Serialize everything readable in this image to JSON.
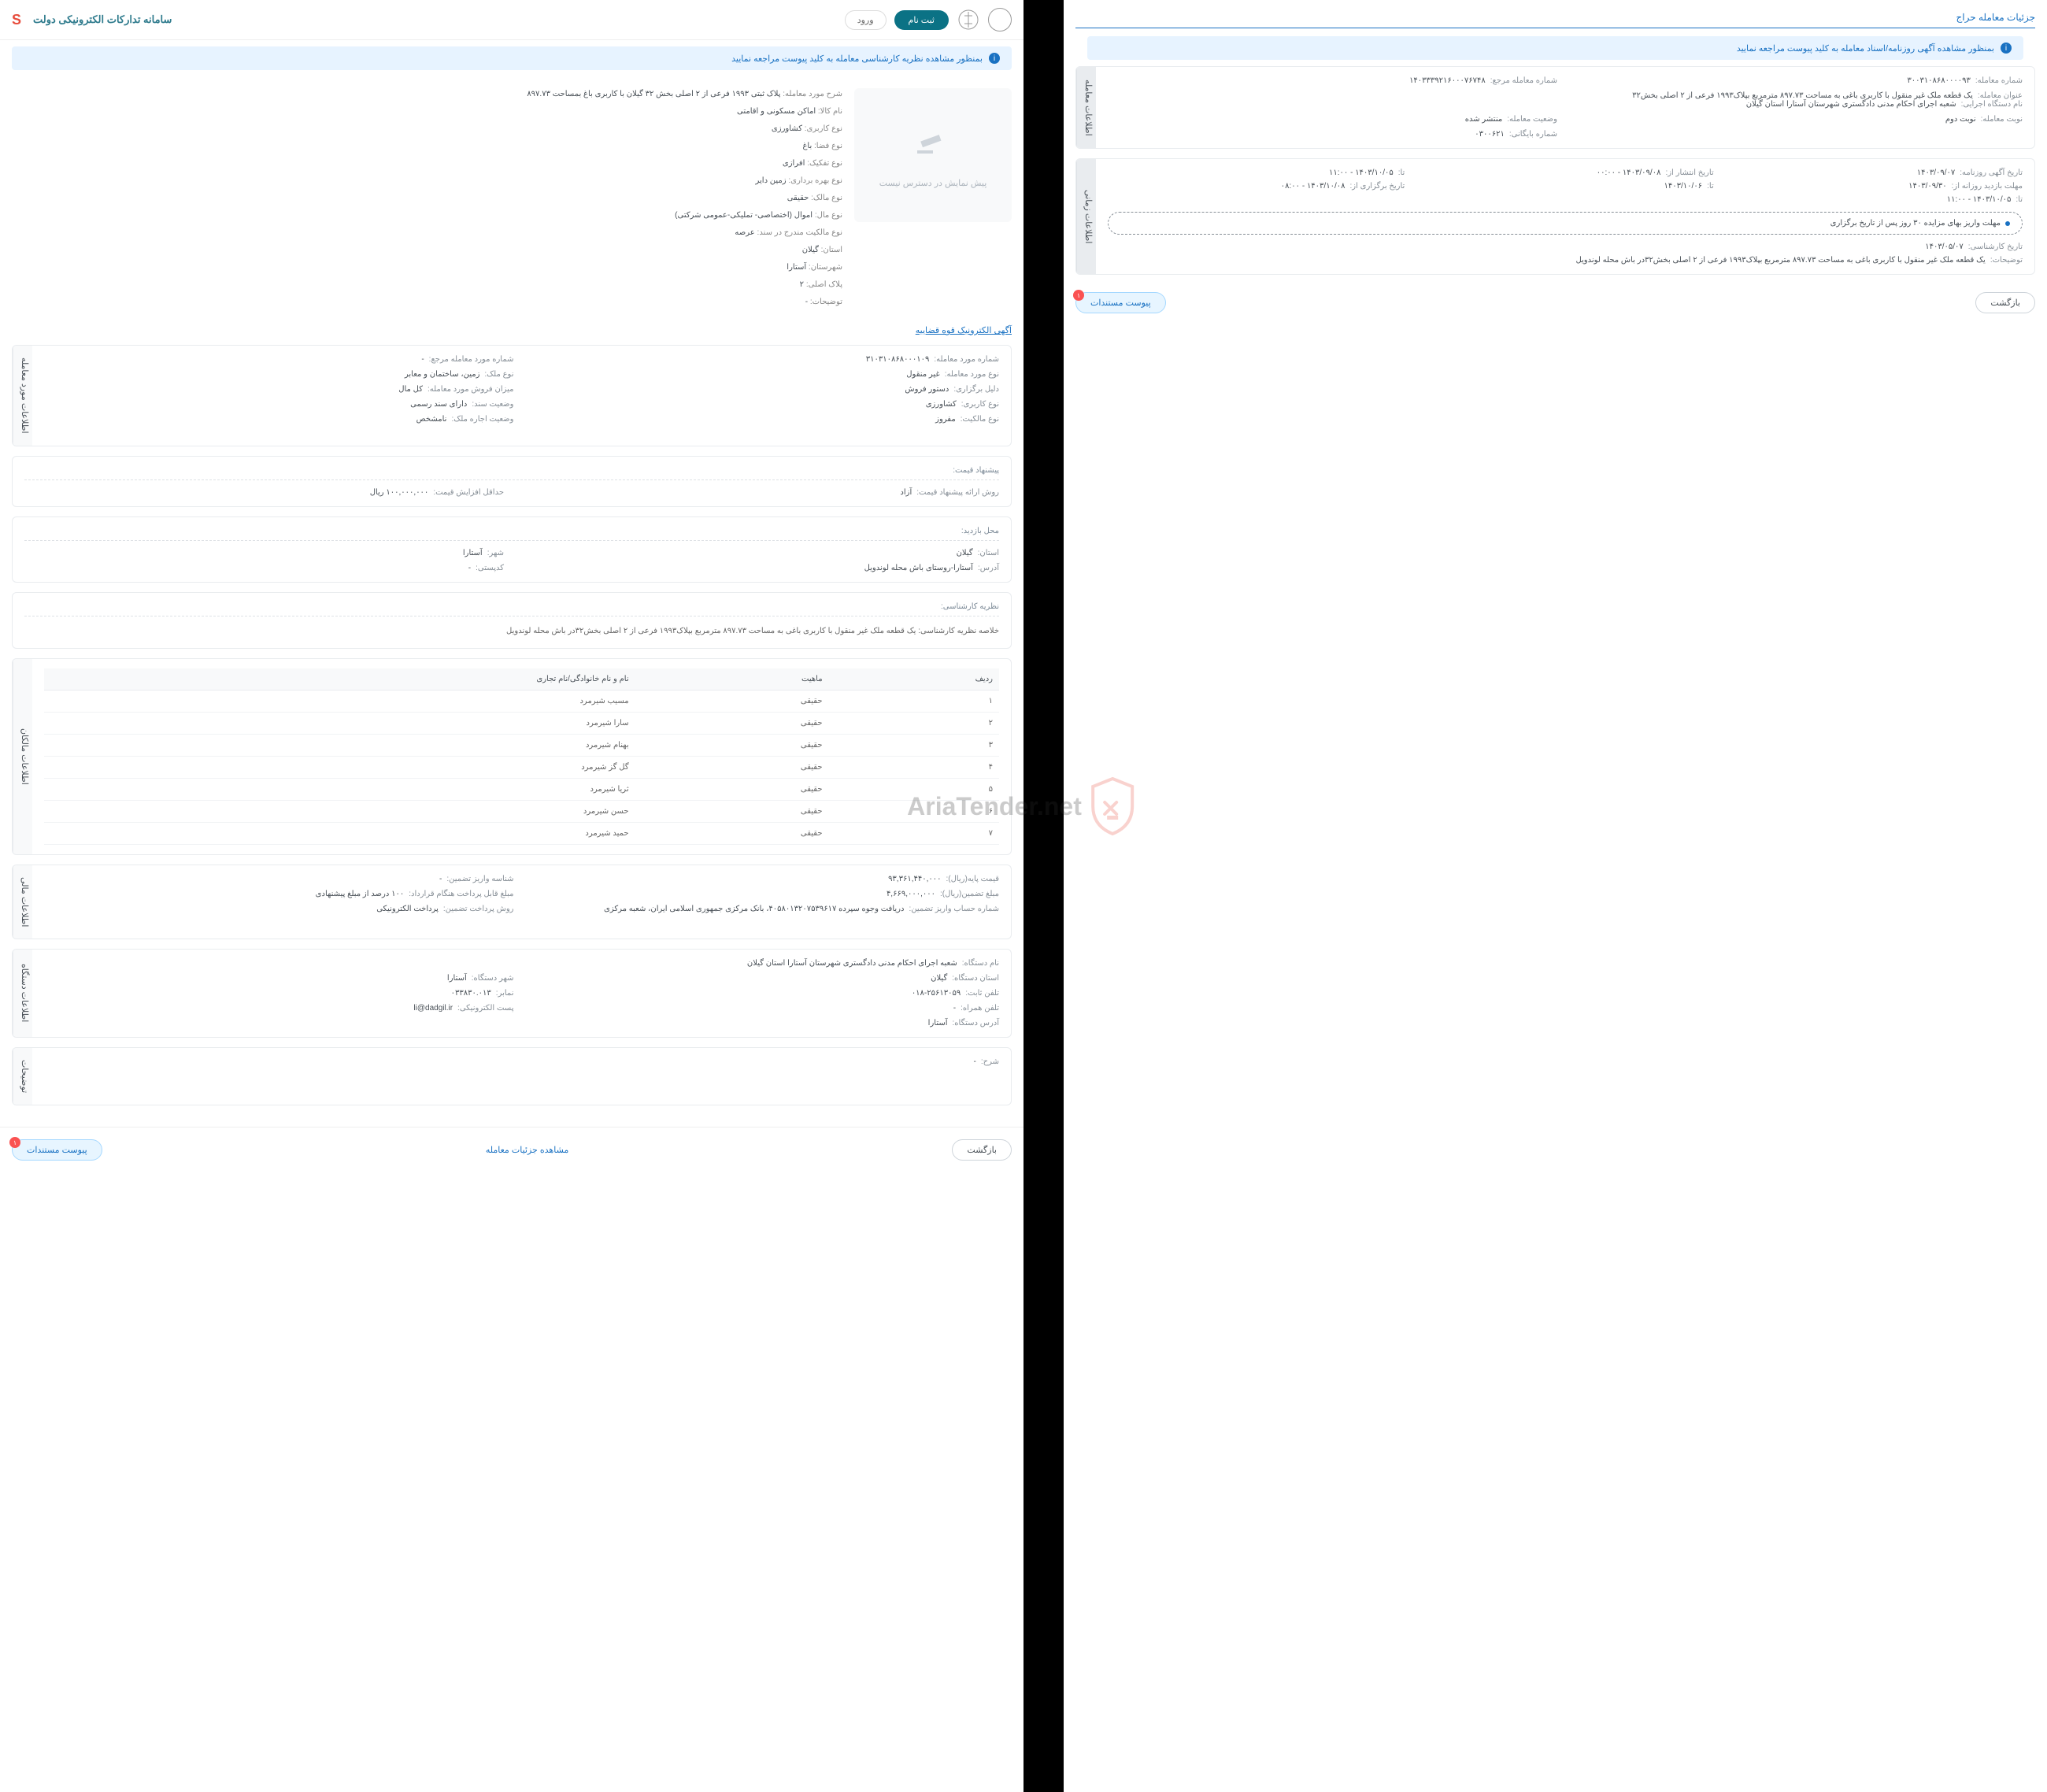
{
  "header": {
    "site_title": "سامانه تدارکات الکترونیکی دولت",
    "login_btn": "ورود",
    "register_btn": "ثبت نام"
  },
  "notice_right": "بمنظور مشاهده نظریه کارشناسی معامله به کلید پیوست مراجعه نمایید",
  "notice_left": "بمنظور مشاهده آگهی روزنامه/اسناد معامله به کلید پیوست مراجعه نمایید",
  "placeholder_text": "پیش نمایش در دسترس نیست",
  "top_info": [
    {
      "label": "شرح مورد معامله:",
      "value": "پلاک ثبتی ۱۹۹۳ فرعی از ۲ اصلی بخش ۳۲ گیلان با کاربری باغ بمساحت ۸۹۷.۷۳"
    },
    {
      "label": "نام کالا:",
      "value": "اماکن مسکونی و اقامتی"
    },
    {
      "label": "نوع کاربری:",
      "value": "کشاورزی"
    },
    {
      "label": "نوع فضا:",
      "value": "باغ"
    },
    {
      "label": "نوع تفکیک:",
      "value": "افرازی"
    },
    {
      "label": "نوع بهره برداری:",
      "value": "زمین دایر"
    },
    {
      "label": "نوع مالک:",
      "value": "حقیقی"
    },
    {
      "label": "نوع مال:",
      "value": "اموال (اختصاصی- تملیکی-عمومی شرکتی)"
    },
    {
      "label": "نوع مالکیت مندرج در سند:",
      "value": "عرصه"
    },
    {
      "label": "استان:",
      "value": "گیلان"
    },
    {
      "label": "شهرستان:",
      "value": "آستارا"
    },
    {
      "label": "پلاک اصلی:",
      "value": "۲"
    },
    {
      "label": "توضیحات:",
      "value": "-"
    }
  ],
  "electronic_link": "آگهی الکترونیک قوه قضاییه",
  "section_deal": {
    "tab": "اطلاعات مورد معامله",
    "fields": [
      {
        "label": "شماره مورد معامله:",
        "value": "۳۱۰۳۱۰۸۶۸۰۰۰۱۰۹"
      },
      {
        "label": "شماره مورد معامله مرجع:",
        "value": "-"
      },
      {
        "label": "نوع مورد معامله:",
        "value": "غیر منقول"
      },
      {
        "label": "نوع ملک:",
        "value": "زمین، ساختمان و معابر"
      },
      {
        "label": "دلیل برگزاری:",
        "value": "دستور فروش"
      },
      {
        "label": "میزان فروش مورد معامله:",
        "value": "کل مال"
      },
      {
        "label": "نوع کاربری:",
        "value": "کشاورزی"
      },
      {
        "label": "وضعیت سند:",
        "value": "دارای سند رسمی"
      },
      {
        "label": "نوع مالکیت:",
        "value": "مفروز"
      },
      {
        "label": "وضعیت اجاره ملک:",
        "value": "نامشخص"
      }
    ]
  },
  "section_price": {
    "heading": "پیشنهاد قیمت:",
    "fields": [
      {
        "label": "روش ارائه پیشنهاد قیمت:",
        "value": "آزاد"
      },
      {
        "label": "حداقل افزایش قیمت:",
        "value": "۱۰۰,۰۰۰,۰۰۰ ریال"
      }
    ]
  },
  "section_visit": {
    "heading": "محل بازدید:",
    "fields": [
      {
        "label": "استان:",
        "value": "گیلان"
      },
      {
        "label": "شهر:",
        "value": "آستارا"
      },
      {
        "label": "آدرس:",
        "value": "آستارا-روستای باش محله لوندویل"
      },
      {
        "label": "کدپستی:",
        "value": "-"
      }
    ]
  },
  "section_expert": {
    "heading": "نظریه کارشناسی:",
    "summary": "خلاصه نظریه کارشناسی: یک قطعه ملک غیر منقول با کاربری باغی به مساحت ۸۹۷.۷۳ مترمربع بپلاک۱۹۹۳ فرعی از ۲ اصلی بخش۳۲در باش محله لوندویل"
  },
  "section_owners": {
    "tab": "اطلاعات مالکان",
    "columns": [
      "ردیف",
      "ماهیت",
      "نام و نام خانوادگی/نام تجاری"
    ],
    "rows": [
      [
        "۱",
        "حقیقی",
        "مسیب شیرمرد"
      ],
      [
        "۲",
        "حقیقی",
        "سارا شیرمرد"
      ],
      [
        "۳",
        "حقیقی",
        "بهنام شیرمرد"
      ],
      [
        "۴",
        "حقیقی",
        "گل گز شیرمرد"
      ],
      [
        "۵",
        "حقیقی",
        "ثریا شیرمرد"
      ],
      [
        "۶",
        "حقیقی",
        "حسن شیرمرد"
      ],
      [
        "۷",
        "حقیقی",
        "حمید شیرمرد"
      ]
    ]
  },
  "section_financial": {
    "tab": "اطلاعات مالی",
    "fields": [
      {
        "label": "قیمت پایه(ریال):",
        "value": "۹۳,۳۶۱,۴۴۰,۰۰۰"
      },
      {
        "label": "شناسه واریز تضمین:",
        "value": "-"
      },
      {
        "label": "مبلغ تضمین(ریال):",
        "value": "۴,۶۶۹,۰۰۰,۰۰۰"
      },
      {
        "label": "مبلغ قابل پرداخت هنگام قرارداد:",
        "value": "۱۰۰ درصد از مبلغ پیشنهادی"
      },
      {
        "label": "شماره حساب واریز تضمین:",
        "value": "دریافت وجوه سپرده ۴۰۵۸۰۱۳۲۰۷۵۳۹۶۱۷، بانک مرکزی جمهوری اسلامی ایران، شعبه مرکزی"
      },
      {
        "label": "روش پرداخت تضمین:",
        "value": "پرداخت الکترونیکی"
      }
    ]
  },
  "section_agency": {
    "tab": "اطلاعات دستگاه",
    "fields": [
      {
        "label": "نام دستگاه:",
        "value": "شعبه اجرای احکام مدنی دادگستری شهرستان آستارا استان گیلان"
      },
      {
        "label": "",
        "value": ""
      },
      {
        "label": "استان دستگاه:",
        "value": "گیلان"
      },
      {
        "label": "شهر دستگاه:",
        "value": "آستارا"
      },
      {
        "label": "تلفن ثابت:",
        "value": "۰۱۸-۲۵۶۱۳۰۵۹"
      },
      {
        "label": "نمابر:",
        "value": "۰۳۳۸۳۰.۰۱۳"
      },
      {
        "label": "تلفن همراه:",
        "value": "-"
      },
      {
        "label": "پست الکترونیکی:",
        "value": "li@dadgil.ir"
      },
      {
        "label": "آدرس دستگاه:",
        "value": "آستارا"
      }
    ]
  },
  "section_notes": {
    "tab": "توضیحات",
    "fields": [
      {
        "label": "شرح:",
        "value": "-"
      }
    ]
  },
  "bottom_right": {
    "attachments_btn": "پیوست مستندات",
    "badge": "۱",
    "details_link": "مشاهده جزئیات معامله",
    "back_btn": "بازگشت"
  },
  "left_panel": {
    "title": "جزئیات معامله حراج",
    "section_deal": {
      "tab": "اطلاعات معامله",
      "fields_row1": [
        {
          "label": "شماره معامله:",
          "value": "۳۰۰۳۱۰۸۶۸۰۰۰۰۹۳"
        },
        {
          "label": "شماره معامله مرجع:",
          "value": "۱۴۰۳۳۳۹۲۱۶۰۰۰۷۶۷۴۸"
        }
      ],
      "fields_full": [
        {
          "label": "عنوان معامله:",
          "value": "یک قطعه ملک غیر منقول با کاربری باغی به مساحت ۸۹۷.۷۳ مترمربع بپلاک۱۹۹۳ فرعی از ۲ اصلی بخش۳۲"
        },
        {
          "label": "نام دستگاه اجرایی:",
          "value": "شعبه اجرای احکام مدنی دادگستری شهرستان آستارا استان گیلان"
        }
      ],
      "fields_row2": [
        {
          "label": "نوبت معامله:",
          "value": "نوبت دوم"
        },
        {
          "label": "وضعیت معامله:",
          "value": "منتشر شده"
        },
        {
          "label": "",
          "value": ""
        },
        {
          "label": "شماره بایگانی:",
          "value": "۰۳۰۰۶۲۱"
        }
      ]
    },
    "section_time": {
      "tab": "اطلاعات زمانی",
      "fields": [
        {
          "label": "تاریخ آگهی روزنامه:",
          "value": "۱۴۰۳/۰۹/۰۷"
        },
        {
          "label": "تاریخ انتشار از:",
          "value": "۱۴۰۳/۰۹/۰۸ - ۰۰:۰۰"
        },
        {
          "label": "تا:",
          "value": "۱۴۰۳/۱۰/۰۵ - ۱۱:۰۰"
        },
        {
          "label": "مهلت بازدید روزانه از:",
          "value": "۱۴۰۳/۰۹/۳۰"
        },
        {
          "label": "تا:",
          "value": "۱۴۰۳/۱۰/۰۶"
        },
        {
          "label": "تاریخ برگزاری از:",
          "value": "۱۴۰۳/۱۰/۰۸ - ۰۸:۰۰"
        },
        {
          "label": "تا:",
          "value": "۱۴۰۳/۱۰/۰۵ - ۱۱:۰۰"
        }
      ],
      "highlight": "مهلت واریز بهای مزایده ۳۰ روز پس از تاریخ برگزاری",
      "bottom_fields": [
        {
          "label": "تاریخ کارشناسی:",
          "value": "۱۴۰۳/۰۵/۰۷"
        }
      ],
      "description": {
        "label": "توضیحات:",
        "value": "یک قطعه ملک غیر منقول با کاربری باغی به مساحت ۸۹۷.۷۳ مترمربع بپلاک۱۹۹۳ فرعی از ۲ اصلی بخش۳۲در باش محله لوندویل"
      }
    },
    "attachments_btn": "پیوست مستندات",
    "badge": "۱",
    "back_btn": "بازگشت"
  },
  "watermark": "AriaTender.net"
}
